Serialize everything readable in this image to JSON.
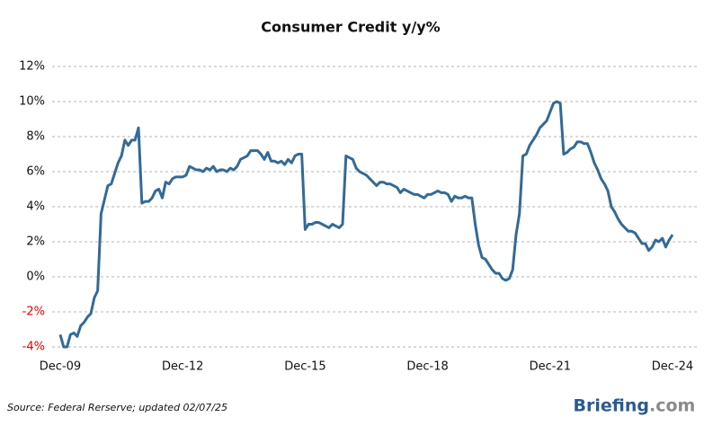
{
  "chart_data": {
    "type": "line",
    "title": "Consumer Credit y/y%",
    "source": "Source: Federal Rerserve; updated 02/07/25",
    "logo": "Briefing",
    "logo_suffix": ".com",
    "categories": [
      "Dec-09",
      null,
      null,
      null,
      null,
      null,
      null,
      null,
      null,
      null,
      null,
      null,
      null,
      null,
      null,
      null,
      null,
      null,
      null,
      null,
      null,
      null,
      null,
      null,
      null,
      null,
      null,
      null,
      null,
      null,
      null,
      null,
      null,
      null,
      null,
      null,
      "Dec-12",
      null,
      null,
      null,
      null,
      null,
      null,
      null,
      null,
      null,
      null,
      null,
      null,
      null,
      null,
      null,
      null,
      null,
      null,
      null,
      null,
      null,
      null,
      null,
      null,
      null,
      null,
      null,
      null,
      null,
      null,
      null,
      null,
      null,
      null,
      null,
      "Dec-15",
      null,
      null,
      null,
      null,
      null,
      null,
      null,
      null,
      null,
      null,
      null,
      null,
      null,
      null,
      null,
      null,
      null,
      null,
      null,
      null,
      null,
      null,
      null,
      null,
      null,
      null,
      null,
      null,
      null,
      null,
      null,
      null,
      null,
      null,
      null,
      "Dec-18",
      null,
      null,
      null,
      null,
      null,
      null,
      null,
      null,
      null,
      null,
      null,
      null,
      null,
      null,
      null,
      null,
      null,
      null,
      null,
      null,
      null,
      null,
      null,
      null,
      null,
      null,
      null,
      null,
      null,
      null,
      null,
      null,
      null,
      null,
      null,
      "Dec-21",
      null,
      null,
      null,
      null,
      null,
      null,
      null,
      null,
      null,
      null,
      null,
      null,
      null,
      null,
      null,
      null,
      null,
      null,
      null,
      null,
      null,
      null,
      null,
      null,
      null,
      null,
      null,
      null,
      null,
      null,
      null,
      null,
      null,
      null,
      null,
      "Dec-24"
    ],
    "series": [
      {
        "name": "Consumer Credit y/y%",
        "color": "#336a96",
        "values": [
          -3.3,
          -4.0,
          -4.0,
          -3.3,
          -3.2,
          -3.4,
          -2.8,
          -2.6,
          -2.3,
          -2.1,
          -1.2,
          -0.8,
          3.6,
          4.4,
          5.2,
          5.3,
          5.9,
          6.5,
          6.9,
          7.8,
          7.5,
          7.8,
          7.8,
          8.5,
          4.2,
          4.3,
          4.3,
          4.5,
          4.9,
          5.0,
          4.5,
          5.4,
          5.3,
          5.6,
          5.7,
          5.7,
          5.7,
          5.8,
          6.3,
          6.2,
          6.1,
          6.1,
          6.0,
          6.2,
          6.1,
          6.3,
          6.0,
          6.1,
          6.1,
          6.0,
          6.2,
          6.1,
          6.3,
          6.7,
          6.8,
          6.9,
          7.2,
          7.2,
          7.2,
          7.0,
          6.7,
          7.1,
          6.6,
          6.6,
          6.5,
          6.6,
          6.4,
          6.7,
          6.5,
          6.9,
          7.0,
          7.0,
          2.7,
          3.0,
          3.0,
          3.1,
          3.1,
          3.0,
          2.9,
          2.8,
          3.0,
          2.9,
          2.8,
          3.0,
          6.9,
          6.8,
          6.7,
          6.2,
          6.0,
          5.9,
          5.8,
          5.6,
          5.4,
          5.2,
          5.4,
          5.4,
          5.3,
          5.3,
          5.2,
          5.1,
          4.8,
          5.0,
          4.9,
          4.8,
          4.7,
          4.7,
          4.6,
          4.5,
          4.7,
          4.7,
          4.8,
          4.9,
          4.8,
          4.8,
          4.7,
          4.3,
          4.6,
          4.5,
          4.5,
          4.6,
          4.5,
          4.5,
          3.0,
          1.8,
          1.1,
          1.0,
          0.7,
          0.4,
          0.2,
          0.2,
          -0.1,
          -0.2,
          -0.1,
          0.4,
          2.4,
          3.6,
          6.9,
          7.0,
          7.5,
          7.8,
          8.1,
          8.5,
          8.7,
          8.9,
          9.4,
          9.9,
          10.0,
          9.9,
          7.0,
          7.1,
          7.3,
          7.4,
          7.7,
          7.7,
          7.6,
          7.6,
          7.1,
          6.5,
          6.1,
          5.6,
          5.3,
          4.9,
          4.0,
          3.7,
          3.3,
          3.0,
          2.8,
          2.6,
          2.6,
          2.5,
          2.2,
          1.9,
          1.9,
          1.5,
          1.7,
          2.1,
          2.0,
          2.2,
          1.7,
          2.1,
          2.4
        ]
      }
    ],
    "ylim": [
      -4,
      12
    ],
    "yticks": [
      {
        "value": 12,
        "label": "12%"
      },
      {
        "value": 10,
        "label": "10%"
      },
      {
        "value": 8,
        "label": "8%"
      },
      {
        "value": 6,
        "label": "6%"
      },
      {
        "value": 4,
        "label": "4%"
      },
      {
        "value": 2,
        "label": "2%"
      },
      {
        "value": 0,
        "label": "0%"
      },
      {
        "value": -2,
        "label": "-2%"
      },
      {
        "value": -4,
        "label": "-4%"
      }
    ],
    "grid": true,
    "negative_label_color": "#e00000"
  }
}
